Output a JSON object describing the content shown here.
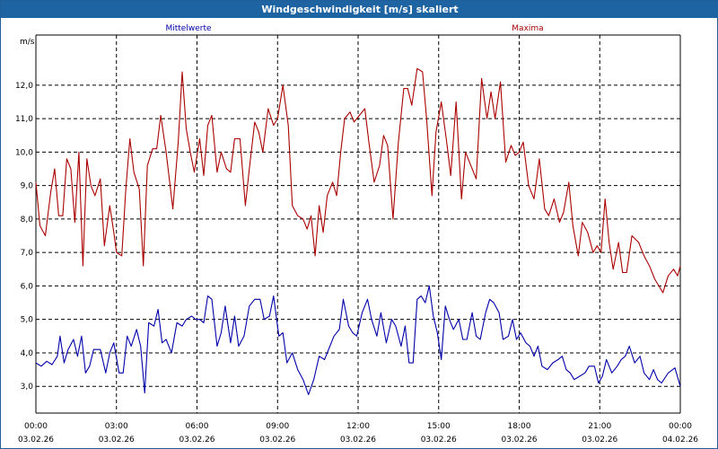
{
  "window_title": "Windgeschwindigkeit [m/s] skaliert",
  "chart_data": {
    "type": "line",
    "title": "Windgeschwindigkeit [m/s] skaliert",
    "ylabel": "m/s",
    "xlabel": "",
    "ylim": [
      2.2,
      13.5
    ],
    "y_ticks": [
      "3,0",
      "4,0",
      "5,0",
      "6,0",
      "7,0",
      "8,0",
      "9,0",
      "10,0",
      "11,0",
      "12,0"
    ],
    "y_tick_values": [
      3,
      4,
      5,
      6,
      7,
      8,
      9,
      10,
      11,
      12
    ],
    "x_range_hours": [
      0,
      24
    ],
    "x_ticks": [
      {
        "time": "00:00",
        "date": "03.02.26",
        "hour": 0
      },
      {
        "time": "03:00",
        "date": "03.02.26",
        "hour": 3
      },
      {
        "time": "06:00",
        "date": "03.02.26",
        "hour": 6
      },
      {
        "time": "09:00",
        "date": "03.02.26",
        "hour": 9
      },
      {
        "time": "12:00",
        "date": "03.02.26",
        "hour": 12
      },
      {
        "time": "15:00",
        "date": "03.02.26",
        "hour": 15
      },
      {
        "time": "18:00",
        "date": "03.02.26",
        "hour": 18
      },
      {
        "time": "21:00",
        "date": "03.02.26",
        "hour": 21
      },
      {
        "time": "00:00",
        "date": "04.02.26",
        "hour": 24
      }
    ],
    "grid": true,
    "series": [
      {
        "name": "Mittelwerte",
        "color": "#0000aa",
        "points": [
          [
            0.0,
            3.7
          ],
          [
            0.2,
            3.6
          ],
          [
            0.4,
            3.75
          ],
          [
            0.6,
            3.65
          ],
          [
            0.8,
            3.9
          ],
          [
            0.9,
            4.5
          ],
          [
            1.05,
            3.7
          ],
          [
            1.2,
            4.1
          ],
          [
            1.4,
            4.4
          ],
          [
            1.55,
            3.9
          ],
          [
            1.7,
            4.5
          ],
          [
            1.85,
            3.4
          ],
          [
            2.0,
            3.6
          ],
          [
            2.15,
            4.1
          ],
          [
            2.4,
            4.1
          ],
          [
            2.6,
            3.4
          ],
          [
            2.75,
            4.0
          ],
          [
            2.9,
            4.3
          ],
          [
            3.1,
            3.4
          ],
          [
            3.25,
            3.4
          ],
          [
            3.4,
            4.5
          ],
          [
            3.55,
            4.2
          ],
          [
            3.75,
            4.7
          ],
          [
            3.9,
            4.2
          ],
          [
            4.05,
            2.8
          ],
          [
            4.2,
            4.9
          ],
          [
            4.4,
            4.8
          ],
          [
            4.55,
            5.3
          ],
          [
            4.7,
            4.3
          ],
          [
            4.85,
            4.4
          ],
          [
            5.05,
            4.0
          ],
          [
            5.25,
            4.9
          ],
          [
            5.45,
            4.8
          ],
          [
            5.6,
            5.0
          ],
          [
            5.8,
            5.1
          ],
          [
            5.95,
            5.0
          ],
          [
            6.1,
            5.0
          ],
          [
            6.25,
            4.9
          ],
          [
            6.4,
            5.7
          ],
          [
            6.55,
            5.6
          ],
          [
            6.75,
            4.2
          ],
          [
            6.9,
            4.6
          ],
          [
            7.05,
            5.4
          ],
          [
            7.25,
            4.3
          ],
          [
            7.4,
            5.1
          ],
          [
            7.55,
            4.2
          ],
          [
            7.75,
            4.5
          ],
          [
            7.95,
            5.4
          ],
          [
            8.15,
            5.6
          ],
          [
            8.35,
            5.6
          ],
          [
            8.5,
            5.0
          ],
          [
            8.7,
            5.1
          ],
          [
            8.85,
            5.7
          ],
          [
            9.05,
            4.5
          ],
          [
            9.2,
            4.6
          ],
          [
            9.35,
            3.7
          ],
          [
            9.55,
            4.0
          ],
          [
            9.75,
            3.5
          ],
          [
            9.95,
            3.2
          ],
          [
            10.15,
            2.75
          ],
          [
            10.35,
            3.2
          ],
          [
            10.55,
            3.9
          ],
          [
            10.75,
            3.8
          ],
          [
            10.95,
            4.2
          ],
          [
            11.1,
            4.5
          ],
          [
            11.3,
            4.7
          ],
          [
            11.45,
            5.6
          ],
          [
            11.65,
            4.8
          ],
          [
            11.8,
            4.6
          ],
          [
            11.95,
            4.5
          ],
          [
            12.15,
            5.2
          ],
          [
            12.35,
            5.6
          ],
          [
            12.5,
            5.0
          ],
          [
            12.7,
            4.5
          ],
          [
            12.85,
            5.2
          ],
          [
            13.05,
            4.3
          ],
          [
            13.25,
            5.0
          ],
          [
            13.4,
            4.8
          ],
          [
            13.6,
            4.2
          ],
          [
            13.75,
            4.8
          ],
          [
            13.9,
            3.7
          ],
          [
            14.05,
            3.7
          ],
          [
            14.2,
            5.6
          ],
          [
            14.35,
            5.7
          ],
          [
            14.5,
            5.5
          ],
          [
            14.65,
            6.0
          ],
          [
            14.8,
            5.1
          ],
          [
            14.95,
            4.6
          ],
          [
            15.1,
            3.8
          ],
          [
            15.25,
            5.4
          ],
          [
            15.4,
            5.0
          ],
          [
            15.55,
            4.7
          ],
          [
            15.75,
            5.0
          ],
          [
            15.9,
            4.4
          ],
          [
            16.05,
            4.4
          ],
          [
            16.25,
            5.2
          ],
          [
            16.4,
            4.5
          ],
          [
            16.55,
            4.4
          ],
          [
            16.75,
            5.2
          ],
          [
            16.9,
            5.6
          ],
          [
            17.05,
            5.5
          ],
          [
            17.25,
            5.2
          ],
          [
            17.4,
            4.4
          ],
          [
            17.6,
            4.5
          ],
          [
            17.75,
            5.0
          ],
          [
            17.9,
            4.4
          ],
          [
            18.05,
            4.6
          ],
          [
            18.25,
            4.3
          ],
          [
            18.4,
            4.2
          ],
          [
            18.55,
            3.9
          ],
          [
            18.7,
            4.2
          ],
          [
            18.85,
            3.6
          ],
          [
            19.05,
            3.5
          ],
          [
            19.25,
            3.7
          ],
          [
            19.45,
            3.8
          ],
          [
            19.6,
            3.9
          ],
          [
            19.75,
            3.5
          ],
          [
            19.9,
            3.4
          ],
          [
            20.05,
            3.2
          ],
          [
            20.25,
            3.3
          ],
          [
            20.45,
            3.4
          ],
          [
            20.6,
            3.6
          ],
          [
            20.8,
            3.6
          ],
          [
            20.95,
            3.1
          ],
          [
            21.1,
            3.3
          ],
          [
            21.25,
            3.8
          ],
          [
            21.45,
            3.4
          ],
          [
            21.65,
            3.6
          ],
          [
            21.8,
            3.8
          ],
          [
            21.95,
            3.9
          ],
          [
            22.1,
            4.2
          ],
          [
            22.3,
            3.7
          ],
          [
            22.5,
            3.9
          ],
          [
            22.65,
            3.4
          ],
          [
            22.85,
            3.2
          ],
          [
            23.0,
            3.5
          ],
          [
            23.15,
            3.2
          ],
          [
            23.3,
            3.1
          ],
          [
            23.55,
            3.4
          ],
          [
            23.8,
            3.55
          ],
          [
            24.0,
            3.0
          ]
        ]
      },
      {
        "name": "Maxima",
        "color": "#aa0000",
        "points": [
          [
            0.0,
            9.1
          ],
          [
            0.15,
            7.8
          ],
          [
            0.35,
            7.5
          ],
          [
            0.55,
            8.8
          ],
          [
            0.7,
            9.5
          ],
          [
            0.85,
            8.1
          ],
          [
            1.0,
            8.1
          ],
          [
            1.15,
            9.8
          ],
          [
            1.3,
            9.5
          ],
          [
            1.45,
            7.9
          ],
          [
            1.6,
            10.0
          ],
          [
            1.75,
            6.6
          ],
          [
            1.9,
            9.8
          ],
          [
            2.05,
            9.0
          ],
          [
            2.2,
            8.7
          ],
          [
            2.4,
            9.2
          ],
          [
            2.55,
            7.2
          ],
          [
            2.75,
            8.4
          ],
          [
            2.9,
            7.6
          ],
          [
            3.0,
            7.0
          ],
          [
            3.2,
            6.9
          ],
          [
            3.35,
            8.9
          ],
          [
            3.5,
            10.4
          ],
          [
            3.65,
            9.4
          ],
          [
            3.85,
            8.9
          ],
          [
            4.0,
            6.6
          ],
          [
            4.15,
            9.6
          ],
          [
            4.35,
            10.1
          ],
          [
            4.5,
            10.1
          ],
          [
            4.65,
            11.1
          ],
          [
            4.85,
            10.0
          ],
          [
            5.1,
            8.3
          ],
          [
            5.3,
            10.3
          ],
          [
            5.45,
            12.4
          ],
          [
            5.6,
            10.7
          ],
          [
            5.75,
            10.0
          ],
          [
            5.9,
            9.4
          ],
          [
            6.1,
            10.4
          ],
          [
            6.25,
            9.3
          ],
          [
            6.4,
            10.8
          ],
          [
            6.55,
            11.1
          ],
          [
            6.75,
            9.4
          ],
          [
            6.9,
            10.0
          ],
          [
            7.1,
            9.5
          ],
          [
            7.25,
            9.4
          ],
          [
            7.4,
            10.4
          ],
          [
            7.6,
            10.4
          ],
          [
            7.8,
            8.4
          ],
          [
            7.95,
            9.5
          ],
          [
            8.15,
            10.9
          ],
          [
            8.3,
            10.6
          ],
          [
            8.45,
            10.0
          ],
          [
            8.65,
            11.3
          ],
          [
            8.85,
            10.8
          ],
          [
            9.0,
            11.0
          ],
          [
            9.2,
            12.0
          ],
          [
            9.4,
            10.8
          ],
          [
            9.55,
            8.4
          ],
          [
            9.75,
            8.1
          ],
          [
            9.95,
            8.0
          ],
          [
            10.1,
            7.7
          ],
          [
            10.25,
            8.1
          ],
          [
            10.4,
            6.9
          ],
          [
            10.55,
            8.4
          ],
          [
            10.7,
            7.6
          ],
          [
            10.85,
            8.7
          ],
          [
            11.05,
            9.1
          ],
          [
            11.2,
            8.7
          ],
          [
            11.35,
            10.0
          ],
          [
            11.5,
            11.0
          ],
          [
            11.7,
            11.2
          ],
          [
            11.85,
            10.9
          ],
          [
            12.05,
            11.1
          ],
          [
            12.25,
            11.3
          ],
          [
            12.4,
            10.3
          ],
          [
            12.6,
            9.1
          ],
          [
            12.8,
            9.6
          ],
          [
            12.95,
            10.5
          ],
          [
            13.1,
            10.2
          ],
          [
            13.3,
            8.0
          ],
          [
            13.5,
            10.3
          ],
          [
            13.7,
            11.9
          ],
          [
            13.85,
            11.9
          ],
          [
            14.0,
            11.4
          ],
          [
            14.2,
            12.5
          ],
          [
            14.4,
            12.4
          ],
          [
            14.55,
            11.0
          ],
          [
            14.75,
            8.7
          ],
          [
            14.9,
            10.6
          ],
          [
            15.1,
            11.5
          ],
          [
            15.3,
            10.3
          ],
          [
            15.45,
            9.3
          ],
          [
            15.65,
            11.5
          ],
          [
            15.85,
            8.6
          ],
          [
            16.0,
            10.0
          ],
          [
            16.2,
            9.6
          ],
          [
            16.4,
            9.2
          ],
          [
            16.6,
            12.2
          ],
          [
            16.8,
            11.0
          ],
          [
            16.95,
            11.8
          ],
          [
            17.1,
            11.0
          ],
          [
            17.3,
            12.1
          ],
          [
            17.5,
            9.7
          ],
          [
            17.7,
            10.2
          ],
          [
            17.85,
            9.9
          ],
          [
            18.0,
            10.0
          ],
          [
            18.15,
            10.3
          ],
          [
            18.35,
            9.0
          ],
          [
            18.55,
            8.6
          ],
          [
            18.75,
            9.8
          ],
          [
            18.95,
            8.3
          ],
          [
            19.1,
            8.1
          ],
          [
            19.3,
            8.6
          ],
          [
            19.5,
            7.9
          ],
          [
            19.65,
            8.2
          ],
          [
            19.85,
            9.1
          ],
          [
            20.0,
            7.8
          ],
          [
            20.2,
            6.9
          ],
          [
            20.35,
            7.9
          ],
          [
            20.55,
            7.6
          ],
          [
            20.75,
            7.0
          ],
          [
            20.9,
            7.2
          ],
          [
            21.05,
            7.0
          ],
          [
            21.2,
            8.6
          ],
          [
            21.35,
            7.3
          ],
          [
            21.5,
            6.5
          ],
          [
            21.7,
            7.3
          ],
          [
            21.85,
            6.4
          ],
          [
            22.0,
            6.4
          ],
          [
            22.2,
            7.5
          ],
          [
            22.45,
            7.3
          ],
          [
            22.65,
            6.9
          ],
          [
            22.85,
            6.6
          ],
          [
            23.05,
            6.2
          ],
          [
            23.2,
            6.0
          ],
          [
            23.35,
            5.8
          ],
          [
            23.55,
            6.3
          ],
          [
            23.75,
            6.5
          ],
          [
            23.9,
            6.3
          ],
          [
            24.0,
            6.6
          ]
        ]
      }
    ]
  }
}
